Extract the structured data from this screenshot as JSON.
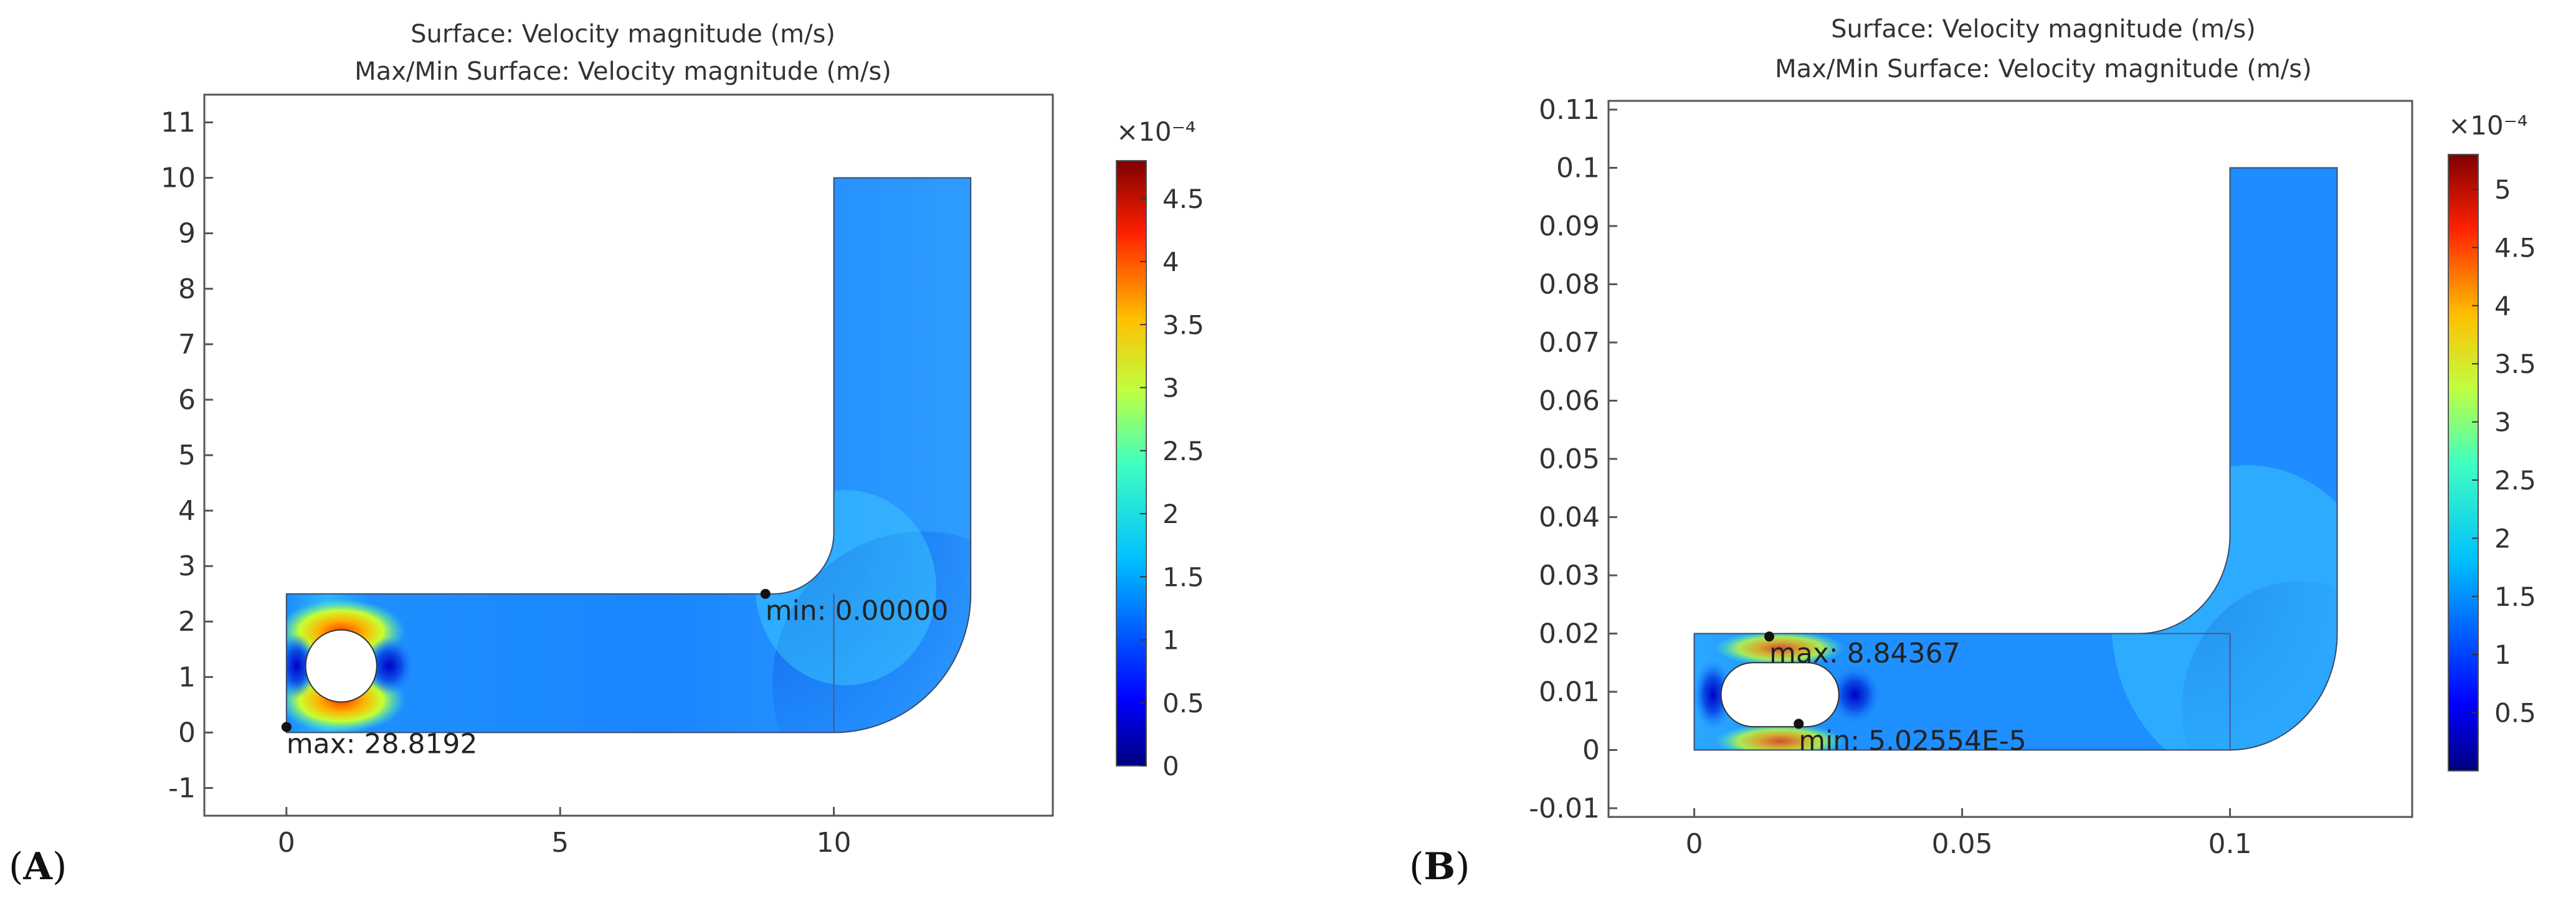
{
  "chart_data": [
    {
      "type": "heatmap",
      "panel_label": "A",
      "title_line1": "Surface: Velocity magnitude (m/s)",
      "title_line2": "Max/Min Surface: Velocity magnitude (m/s)",
      "xlim": [
        -1.5,
        14
      ],
      "ylim": [
        -1.5,
        11.5
      ],
      "x_ticks": [
        0,
        5,
        10
      ],
      "x_tick_labels": [
        "0",
        "5",
        "10"
      ],
      "y_ticks": [
        -1,
        0,
        1,
        2,
        3,
        4,
        5,
        6,
        7,
        8,
        9,
        10,
        11
      ],
      "y_tick_labels": [
        "-1",
        "0",
        "1",
        "2",
        "3",
        "4",
        "5",
        "6",
        "7",
        "8",
        "9",
        "10",
        "11"
      ],
      "colorbar": {
        "exponent_label": "×10⁻⁴",
        "range": [
          0,
          4.8
        ],
        "ticks": [
          0,
          0.5,
          1,
          1.5,
          2,
          2.5,
          3,
          3.5,
          4,
          4.5
        ],
        "tick_labels": [
          "0",
          "0.5",
          "1",
          "1.5",
          "2",
          "2.5",
          "3",
          "3.5",
          "4",
          "4.5"
        ]
      },
      "geometry": {
        "channel": {
          "x0": 0,
          "x1": 10,
          "y0": 0,
          "y1": 2.5
        },
        "riser": {
          "x0": 10,
          "x1": 12.5,
          "y0": 2.5,
          "y1": 10
        },
        "obstacle": {
          "shape": "circle",
          "cx": 1,
          "cy": 1.2,
          "r": 0.65
        },
        "outer_bend_radius": 2.5,
        "inner_fillet_radius": 1.1
      },
      "annotations": [
        {
          "label": "max: 28.8192",
          "x": 0,
          "y": 0.1
        },
        {
          "label": "min: 0.00000",
          "x": 8.75,
          "y": 2.5
        }
      ]
    },
    {
      "type": "heatmap",
      "panel_label": "B",
      "title_line1": "Surface: Velocity magnitude (m/s)",
      "title_line2": "Max/Min Surface: Velocity magnitude (m/s)",
      "xlim": [
        -0.016,
        0.134
      ],
      "ylim": [
        -0.0115,
        0.1115
      ],
      "x_ticks": [
        0,
        0.05,
        0.1
      ],
      "x_tick_labels": [
        "0",
        "0.05",
        "0.1"
      ],
      "y_ticks": [
        -0.01,
        0,
        0.01,
        0.02,
        0.03,
        0.04,
        0.05,
        0.06,
        0.07,
        0.08,
        0.09,
        0.1,
        0.11
      ],
      "y_tick_labels": [
        "-0.01",
        "0",
        "0.01",
        "0.02",
        "0.03",
        "0.04",
        "0.05",
        "0.06",
        "0.07",
        "0.08",
        "0.09",
        "0.1",
        "0.11"
      ],
      "colorbar": {
        "exponent_label": "×10⁻⁴",
        "range": [
          0,
          5.3
        ],
        "ticks": [
          0.5,
          1,
          1.5,
          2,
          2.5,
          3,
          3.5,
          4,
          4.5,
          5
        ],
        "tick_labels": [
          "0.5",
          "1",
          "1.5",
          "2",
          "2.5",
          "3",
          "3.5",
          "4",
          "4.5",
          "5"
        ]
      },
      "geometry": {
        "channel": {
          "x0": 0,
          "x1": 0.1,
          "y0": 0,
          "y1": 0.02
        },
        "riser": {
          "x0": 0.1,
          "x1": 0.12,
          "y0": 0.02,
          "y1": 0.1
        },
        "obstacle": {
          "shape": "stadium",
          "x0": 0.005,
          "x1": 0.027,
          "cy": 0.0095,
          "r": 0.0055
        },
        "outer_bend_radius": 0.02,
        "inner_fillet_radius": 0.017
      },
      "annotations": [
        {
          "label": "max: 8.84367",
          "x": 0.014,
          "y": 0.0195
        },
        {
          "label": "min: 5.02554E-5",
          "x": 0.0195,
          "y": 0.0045
        }
      ]
    }
  ]
}
